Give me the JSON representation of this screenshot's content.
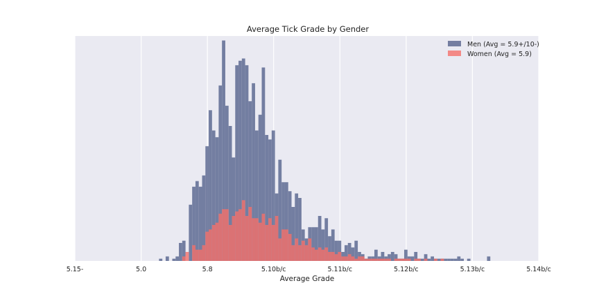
{
  "chart_data": {
    "type": "histogram",
    "title": "Average Tick Grade by Gender",
    "xlabel": "Average Grade",
    "ylabel": "",
    "x_ticks": [
      "5.15-",
      "5.0",
      "5.8",
      "5.10b/c",
      "5.11b/c",
      "5.12b/c",
      "5.13b/c",
      "5.14b/c"
    ],
    "xlim": [
      0,
      7
    ],
    "ylim": [
      0,
      1000
    ],
    "y_ticks_shown": false,
    "grid": true,
    "legend_position": "top-right",
    "bin_start": 1.22,
    "bin_width": 0.05,
    "series": [
      {
        "name": "Men (Avg = 5.9+/10-)",
        "color": "#4c5a86",
        "values": [
          0,
          10,
          0,
          20,
          0,
          10,
          20,
          80,
          90,
          0,
          250,
          330,
          355,
          330,
          380,
          510,
          670,
          580,
          550,
          780,
          980,
          690,
          600,
          460,
          870,
          890,
          900,
          870,
          710,
          790,
          580,
          650,
          860,
          560,
          540,
          580,
          300,
          450,
          350,
          350,
          310,
          240,
          300,
          280,
          140,
          100,
          150,
          150,
          150,
          200,
          140,
          190,
          110,
          140,
          90,
          90,
          40,
          70,
          80,
          60,
          90,
          40,
          30,
          10,
          20,
          20,
          50,
          20,
          40,
          20,
          30,
          40,
          30,
          10,
          10,
          50,
          20,
          20,
          40,
          10,
          10,
          30,
          10,
          20,
          10,
          10,
          10,
          10,
          10,
          10,
          10,
          20,
          10,
          0,
          10,
          0,
          0,
          0,
          0,
          0,
          20
        ]
      },
      {
        "name": "Women (Avg = 5.9)",
        "color": "#f5706a",
        "values": [
          0,
          0,
          0,
          0,
          0,
          0,
          0,
          0,
          20,
          40,
          0,
          70,
          50,
          50,
          70,
          130,
          140,
          160,
          170,
          210,
          230,
          230,
          160,
          200,
          220,
          230,
          270,
          200,
          240,
          190,
          190,
          170,
          210,
          160,
          190,
          160,
          200,
          100,
          140,
          140,
          120,
          70,
          100,
          70,
          90,
          70,
          100,
          60,
          50,
          60,
          50,
          60,
          40,
          40,
          30,
          40,
          20,
          20,
          30,
          20,
          10,
          20,
          20,
          10,
          10,
          10,
          10,
          10,
          10,
          10,
          10,
          0,
          10,
          10,
          10,
          10,
          10,
          0,
          10,
          10,
          0,
          10,
          0,
          0,
          10,
          0,
          10,
          0,
          0,
          0,
          0,
          0,
          0,
          0,
          0,
          0,
          0,
          0,
          0,
          0,
          0
        ]
      }
    ]
  }
}
